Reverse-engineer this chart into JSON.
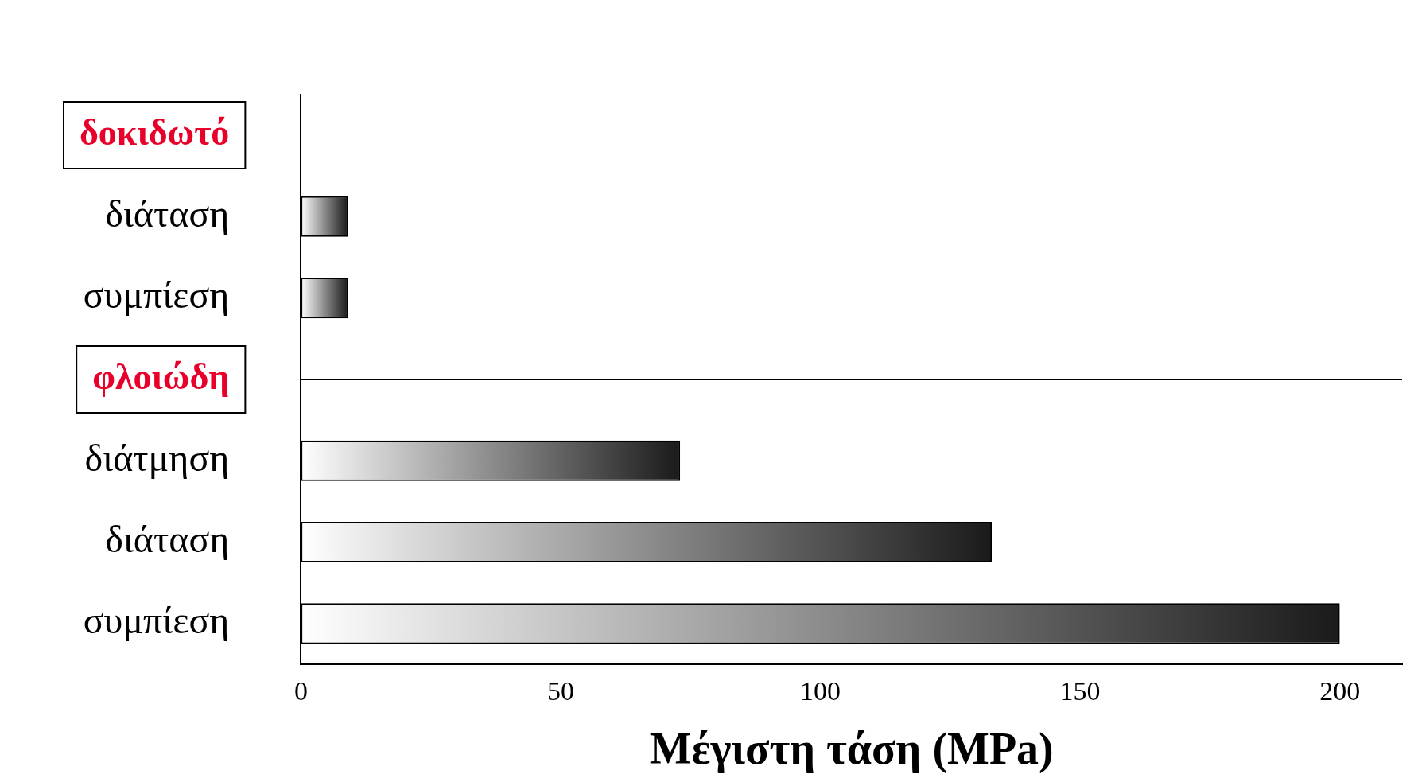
{
  "chart_data": {
    "type": "bar",
    "orientation": "horizontal",
    "xlabel": "Μέγιστη τάση (MPa)",
    "categories": [
      "δοκιδωτό",
      "διάταση",
      "συμπίεση",
      "φλοιώδη",
      "διάτμηση",
      "διάταση",
      "συμπίεση"
    ],
    "values": [
      null,
      9,
      9,
      null,
      73,
      133,
      200
    ],
    "color": "#1a1a1a",
    "xlim": [
      0,
      212
    ],
    "xticks": [
      0,
      50,
      100,
      150,
      200
    ],
    "ref_lines": [
      {
        "axis": "y",
        "value": "φλοιώδη"
      }
    ],
    "grid": false,
    "legend": false
  }
}
